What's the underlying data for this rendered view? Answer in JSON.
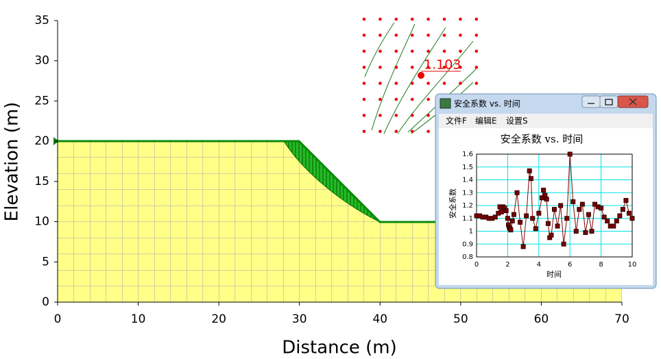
{
  "chart_data": [
    {
      "type": "slope",
      "x_label": "Distance (m)",
      "y_label": "Elevation (m)",
      "xlim": [
        0,
        70
      ],
      "ylim": [
        0,
        35
      ],
      "xticks": [
        0,
        10,
        20,
        30,
        40,
        50,
        60,
        70
      ],
      "yticks": [
        0,
        5,
        10,
        15,
        20,
        25,
        30,
        35
      ],
      "annotation": "1.103"
    },
    {
      "type": "line",
      "title": "安全系数 vs. 时间",
      "x_label": "时间",
      "y_label": "安全系数",
      "color": "#7a0000",
      "x": [
        0,
        0.2,
        0.4,
        0.6,
        0.8,
        1.0,
        1.2,
        1.4,
        1.5,
        1.6,
        1.7,
        1.8,
        1.9,
        2.0,
        2.05,
        2.1,
        2.15,
        2.2,
        2.3,
        2.4,
        2.6,
        2.8,
        3.0,
        3.2,
        3.4,
        3.5,
        3.6,
        3.8,
        4.0,
        4.2,
        4.3,
        4.4,
        4.5,
        4.6,
        4.7,
        4.8,
        5.0,
        5.2,
        5.4,
        5.6,
        5.8,
        6.0,
        6.2,
        6.4,
        6.6,
        6.8,
        7.0,
        7.2,
        7.4,
        7.6,
        7.8,
        8.0,
        8.2,
        8.4,
        8.6,
        8.8,
        9.0,
        9.2,
        9.4,
        9.6,
        9.8,
        10.0
      ],
      "values": [
        1.12,
        1.12,
        1.11,
        1.11,
        1.1,
        1.1,
        1.11,
        1.14,
        1.19,
        1.15,
        1.19,
        1.18,
        1.16,
        1.1,
        1.05,
        1.03,
        1.02,
        1.01,
        1.08,
        1.13,
        1.3,
        1.07,
        0.88,
        1.12,
        1.47,
        1.41,
        1.1,
        1.02,
        1.14,
        1.26,
        1.32,
        1.28,
        1.25,
        1.06,
        0.95,
        0.97,
        1.17,
        1.04,
        1.2,
        0.9,
        1.1,
        1.6,
        1.23,
        1.0,
        1.17,
        1.21,
        0.99,
        1.13,
        1.0,
        1.21,
        1.19,
        1.18,
        1.11,
        1.08,
        1.04,
        1.04,
        1.08,
        1.12,
        1.17,
        1.24,
        1.14,
        1.1
      ],
      "xlim": [
        0,
        10
      ],
      "ylim": [
        0.8,
        1.6
      ],
      "xticks": [
        0,
        2,
        4,
        6,
        8,
        10
      ],
      "yticks": [
        0.8,
        0.9,
        1,
        1.1,
        1.2,
        1.3,
        1.4,
        1.5,
        1.6
      ],
      "grid": true
    }
  ],
  "window": {
    "title": "安全系数 vs. 时间",
    "menu": [
      "文件F",
      "编辑E",
      "设置S"
    ]
  }
}
